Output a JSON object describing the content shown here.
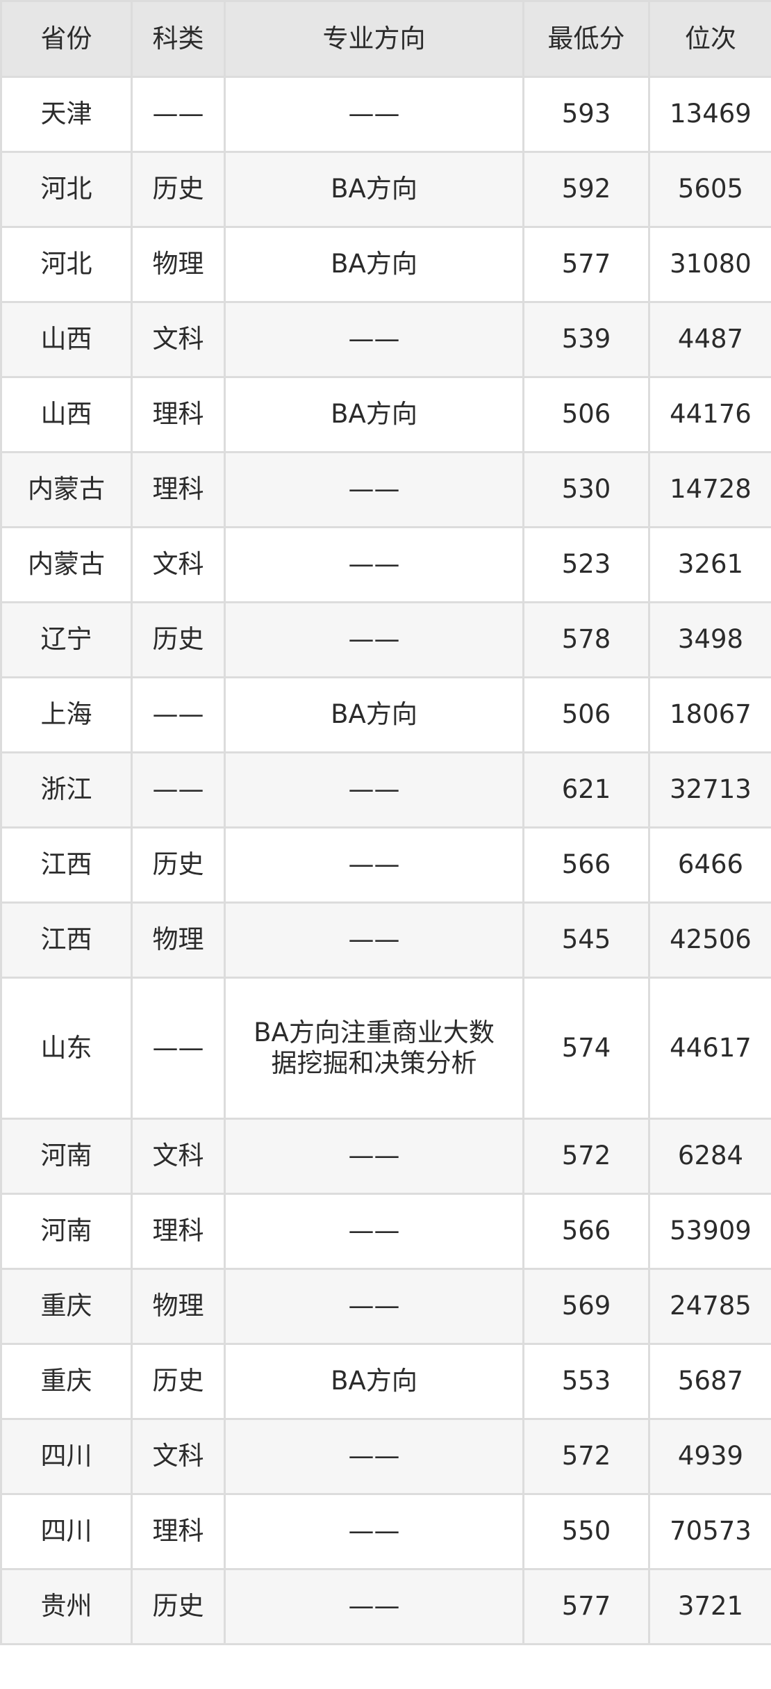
{
  "table": {
    "headers": [
      "省份",
      "科类",
      "专业方向",
      "最低分",
      "位次"
    ],
    "rows": [
      {
        "province": "天津",
        "category": "——",
        "direction": "——",
        "min_score": "593",
        "rank": "13469"
      },
      {
        "province": "河北",
        "category": "历史",
        "direction": "BA方向",
        "min_score": "592",
        "rank": "5605"
      },
      {
        "province": "河北",
        "category": "物理",
        "direction": "BA方向",
        "min_score": "577",
        "rank": "31080"
      },
      {
        "province": "山西",
        "category": "文科",
        "direction": "——",
        "min_score": "539",
        "rank": "4487"
      },
      {
        "province": "山西",
        "category": "理科",
        "direction": "BA方向",
        "min_score": "506",
        "rank": "44176"
      },
      {
        "province": "内蒙古",
        "category": "理科",
        "direction": "——",
        "min_score": "530",
        "rank": "14728"
      },
      {
        "province": "内蒙古",
        "category": "文科",
        "direction": "——",
        "min_score": "523",
        "rank": "3261"
      },
      {
        "province": "辽宁",
        "category": "历史",
        "direction": "——",
        "min_score": "578",
        "rank": "3498"
      },
      {
        "province": "上海",
        "category": "——",
        "direction": "BA方向",
        "min_score": "506",
        "rank": "18067"
      },
      {
        "province": "浙江",
        "category": "——",
        "direction": "——",
        "min_score": "621",
        "rank": "32713"
      },
      {
        "province": "江西",
        "category": "历史",
        "direction": "——",
        "min_score": "566",
        "rank": "6466"
      },
      {
        "province": "江西",
        "category": "物理",
        "direction": "——",
        "min_score": "545",
        "rank": "42506"
      },
      {
        "province": "山东",
        "category": "——",
        "direction": "BA方向注重商业大数据挖掘和决策分析",
        "min_score": "574",
        "rank": "44617"
      },
      {
        "province": "河南",
        "category": "文科",
        "direction": "——",
        "min_score": "572",
        "rank": "6284"
      },
      {
        "province": "河南",
        "category": "理科",
        "direction": "——",
        "min_score": "566",
        "rank": "53909"
      },
      {
        "province": "重庆",
        "category": "物理",
        "direction": "——",
        "min_score": "569",
        "rank": "24785"
      },
      {
        "province": "重庆",
        "category": "历史",
        "direction": "BA方向",
        "min_score": "553",
        "rank": "5687"
      },
      {
        "province": "四川",
        "category": "文科",
        "direction": "——",
        "min_score": "572",
        "rank": "4939"
      },
      {
        "province": "四川",
        "category": "理科",
        "direction": "——",
        "min_score": "550",
        "rank": "70573"
      },
      {
        "province": "贵州",
        "category": "历史",
        "direction": "——",
        "min_score": "577",
        "rank": "3721"
      }
    ]
  }
}
